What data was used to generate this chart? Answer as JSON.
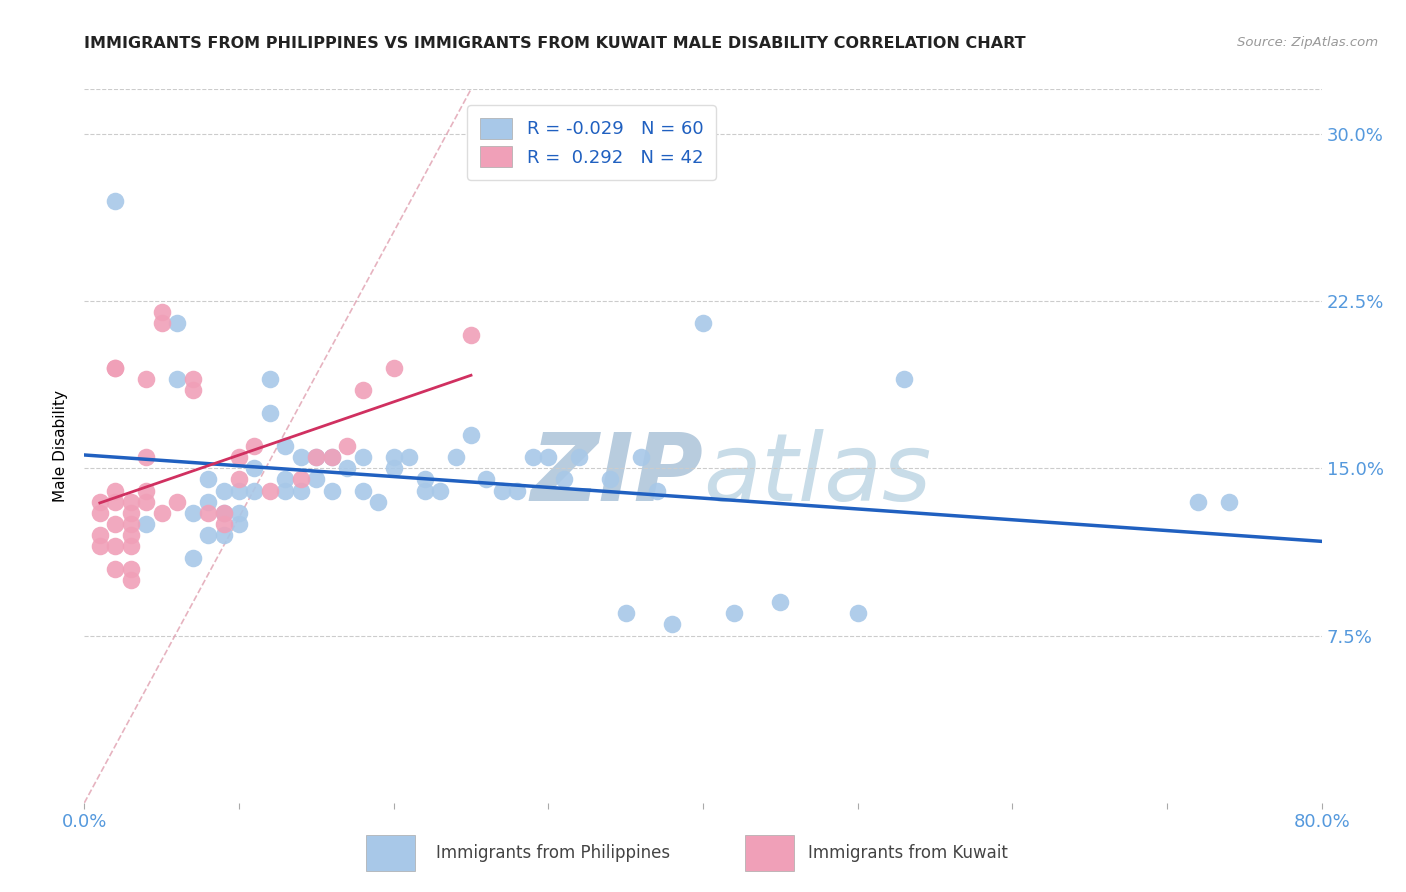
{
  "title": "IMMIGRANTS FROM PHILIPPINES VS IMMIGRANTS FROM KUWAIT MALE DISABILITY CORRELATION CHART",
  "source": "Source: ZipAtlas.com",
  "ylabel": "Male Disability",
  "xlim": [
    0.0,
    0.8
  ],
  "ylim": [
    0.0,
    0.32
  ],
  "yticks": [
    0.075,
    0.15,
    0.225,
    0.3
  ],
  "ytick_labels": [
    "7.5%",
    "15.0%",
    "22.5%",
    "30.0%"
  ],
  "xticks": [
    0.0,
    0.1,
    0.2,
    0.3,
    0.4,
    0.5,
    0.6,
    0.7,
    0.8
  ],
  "series1_color": "#a8c8e8",
  "series2_color": "#f0a0b8",
  "trendline1_color": "#2060c0",
  "trendline2_color": "#d03060",
  "watermark_color": "#d0e4f4",
  "philippines_x": [
    0.02,
    0.04,
    0.06,
    0.06,
    0.07,
    0.07,
    0.08,
    0.08,
    0.08,
    0.09,
    0.09,
    0.09,
    0.1,
    0.1,
    0.1,
    0.11,
    0.11,
    0.12,
    0.12,
    0.13,
    0.13,
    0.13,
    0.14,
    0.14,
    0.15,
    0.15,
    0.16,
    0.16,
    0.17,
    0.18,
    0.18,
    0.19,
    0.2,
    0.2,
    0.21,
    0.22,
    0.22,
    0.23,
    0.24,
    0.25,
    0.26,
    0.27,
    0.28,
    0.29,
    0.3,
    0.31,
    0.32,
    0.34,
    0.35,
    0.36,
    0.37,
    0.38,
    0.4,
    0.42,
    0.45,
    0.5,
    0.53,
    0.72,
    0.74
  ],
  "philippines_y": [
    0.27,
    0.125,
    0.19,
    0.215,
    0.13,
    0.11,
    0.12,
    0.135,
    0.145,
    0.13,
    0.14,
    0.12,
    0.14,
    0.125,
    0.13,
    0.15,
    0.14,
    0.175,
    0.19,
    0.14,
    0.145,
    0.16,
    0.155,
    0.14,
    0.155,
    0.145,
    0.155,
    0.14,
    0.15,
    0.155,
    0.14,
    0.135,
    0.155,
    0.15,
    0.155,
    0.145,
    0.14,
    0.14,
    0.155,
    0.165,
    0.145,
    0.14,
    0.14,
    0.155,
    0.155,
    0.145,
    0.155,
    0.145,
    0.085,
    0.155,
    0.14,
    0.08,
    0.215,
    0.085,
    0.09,
    0.085,
    0.19,
    0.135,
    0.135
  ],
  "kuwait_x": [
    0.01,
    0.01,
    0.01,
    0.01,
    0.02,
    0.02,
    0.02,
    0.02,
    0.02,
    0.02,
    0.02,
    0.03,
    0.03,
    0.03,
    0.03,
    0.03,
    0.03,
    0.03,
    0.04,
    0.04,
    0.04,
    0.04,
    0.05,
    0.05,
    0.05,
    0.06,
    0.07,
    0.07,
    0.08,
    0.09,
    0.09,
    0.1,
    0.1,
    0.11,
    0.12,
    0.14,
    0.15,
    0.16,
    0.17,
    0.18,
    0.2,
    0.25
  ],
  "kuwait_y": [
    0.135,
    0.13,
    0.12,
    0.115,
    0.195,
    0.195,
    0.14,
    0.135,
    0.125,
    0.115,
    0.105,
    0.135,
    0.13,
    0.125,
    0.12,
    0.115,
    0.105,
    0.1,
    0.19,
    0.155,
    0.14,
    0.135,
    0.22,
    0.215,
    0.13,
    0.135,
    0.19,
    0.185,
    0.13,
    0.13,
    0.125,
    0.155,
    0.145,
    0.16,
    0.14,
    0.145,
    0.155,
    0.155,
    0.16,
    0.185,
    0.195,
    0.21
  ]
}
